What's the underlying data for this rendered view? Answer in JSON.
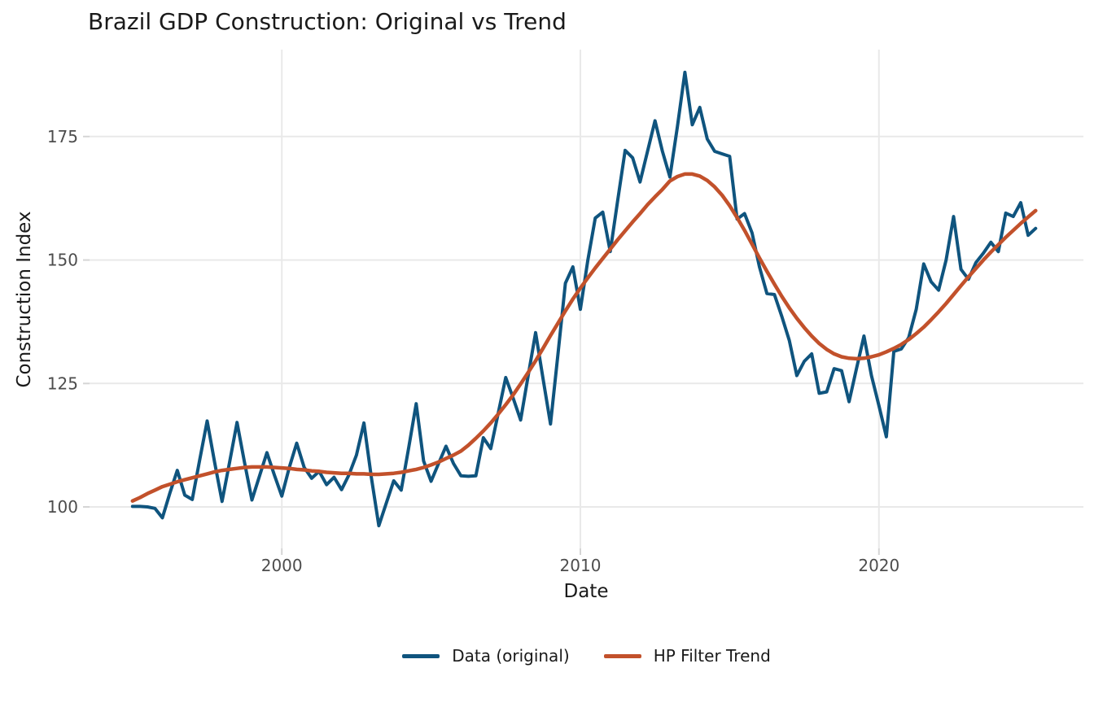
{
  "figure": {
    "title": "Brazil GDP Construction: Original vs Trend",
    "xlabel": "Date",
    "ylabel": "Construction Index",
    "background_color": "#ffffff",
    "grid_color": "#e9e9e9",
    "tick_mark_color": "#d5d5d5",
    "tick_label_color": "#4d4d4d",
    "text_color": "#1a1a1a"
  },
  "legend": {
    "items": [
      {
        "label": "Data (original)",
        "color": "#0f547e"
      },
      {
        "label": "HP Filter Trend",
        "color": "#c2512b"
      }
    ]
  },
  "chart_data": {
    "type": "line",
    "title": "Brazil GDP Construction: Original vs Trend",
    "xlabel": "Date",
    "ylabel": "Construction Index",
    "x_unit": "decimal year, quarterly",
    "xlim": [
      1993.56,
      2026.85
    ],
    "ylim": [
      91.6,
      192.6
    ],
    "x_ticks": [
      2000,
      2010,
      2020
    ],
    "y_ticks": [
      100,
      125,
      150,
      175
    ],
    "grid": true,
    "legend_position": "bottom-center",
    "x": [
      1995,
      1995.25,
      1995.5,
      1995.75,
      1996,
      1996.25,
      1996.5,
      1996.75,
      1997,
      1997.25,
      1997.5,
      1997.75,
      1998,
      1998.25,
      1998.5,
      1998.75,
      1999,
      1999.25,
      1999.5,
      1999.75,
      2000,
      2000.25,
      2000.5,
      2000.75,
      2001,
      2001.25,
      2001.5,
      2001.75,
      2002,
      2002.25,
      2002.5,
      2002.75,
      2003,
      2003.25,
      2003.5,
      2003.75,
      2004,
      2004.25,
      2004.5,
      2004.75,
      2005,
      2005.25,
      2005.5,
      2005.75,
      2006,
      2006.25,
      2006.5,
      2006.75,
      2007,
      2007.25,
      2007.5,
      2007.75,
      2008,
      2008.25,
      2008.5,
      2008.75,
      2009,
      2009.25,
      2009.5,
      2009.75,
      2010,
      2010.25,
      2010.5,
      2010.75,
      2011,
      2011.25,
      2011.5,
      2011.75,
      2012,
      2012.25,
      2012.5,
      2012.75,
      2013,
      2013.25,
      2013.5,
      2013.75,
      2014,
      2014.25,
      2014.5,
      2014.75,
      2015,
      2015.25,
      2015.5,
      2015.75,
      2016,
      2016.25,
      2016.5,
      2016.75,
      2017,
      2017.25,
      2017.5,
      2017.75,
      2018,
      2018.25,
      2018.5,
      2018.75,
      2019,
      2019.25,
      2019.5,
      2019.75,
      2020,
      2020.25,
      2020.5,
      2020.75,
      2021,
      2021.25,
      2021.5,
      2021.75,
      2022,
      2022.25,
      2022.5,
      2022.75,
      2023,
      2023.25,
      2023.5,
      2023.75,
      2024,
      2024.25,
      2024.5,
      2024.75,
      2025,
      2025.25
    ],
    "series": [
      {
        "name": "Data (original)",
        "color": "#0f547e",
        "width": 4,
        "values": [
          100.1,
          100.1,
          100.0,
          99.7,
          97.8,
          102.8,
          107.4,
          102.4,
          101.5,
          109.5,
          117.4,
          109.0,
          101.1,
          109.0,
          117.1,
          109.0,
          101.4,
          106.2,
          111.0,
          106.5,
          102.2,
          108.0,
          112.9,
          108.0,
          105.8,
          107.2,
          104.5,
          106.0,
          103.5,
          106.5,
          110.5,
          117.0,
          106.0,
          96.2,
          100.8,
          105.3,
          103.4,
          112.0,
          120.9,
          109.3,
          105.2,
          108.8,
          112.3,
          108.8,
          106.3,
          106.2,
          106.3,
          114.0,
          111.8,
          119.0,
          126.2,
          122.0,
          117.6,
          126.5,
          135.3,
          126.0,
          116.8,
          131.0,
          145.3,
          148.6,
          140.0,
          150.0,
          158.5,
          159.7,
          151.7,
          162.0,
          172.2,
          170.7,
          165.8,
          172.0,
          178.2,
          172.0,
          166.8,
          177.0,
          188.0,
          177.4,
          180.9,
          174.5,
          172.0,
          171.5,
          171.0,
          158.3,
          159.4,
          155.5,
          148.6,
          143.2,
          143.0,
          138.5,
          133.7,
          126.6,
          129.5,
          131.0,
          123.0,
          123.3,
          128.0,
          127.6,
          121.3,
          128.0,
          134.6,
          126.6,
          120.5,
          114.2,
          131.5,
          132.0,
          134.3,
          140.0,
          149.2,
          145.6,
          143.9,
          150.0,
          158.8,
          148.1,
          146.1,
          149.5,
          151.4,
          153.6,
          151.7,
          159.5,
          158.8,
          161.6,
          155.0,
          156.4
        ]
      },
      {
        "name": "HP Filter Trend",
        "color": "#c2512b",
        "width": 4.5,
        "values": [
          101.2,
          101.9,
          102.7,
          103.4,
          104.1,
          104.6,
          105.1,
          105.5,
          105.9,
          106.3,
          106.7,
          107.1,
          107.4,
          107.6,
          107.8,
          108.0,
          108.1,
          108.1,
          108.1,
          108.0,
          107.9,
          107.8,
          107.6,
          107.5,
          107.3,
          107.2,
          107.0,
          106.9,
          106.8,
          106.8,
          106.7,
          106.7,
          106.6,
          106.6,
          106.7,
          106.8,
          107.0,
          107.3,
          107.6,
          108.0,
          108.5,
          109.1,
          109.8,
          110.5,
          111.3,
          112.5,
          113.9,
          115.4,
          117.0,
          118.8,
          120.7,
          122.7,
          124.9,
          127.2,
          129.6,
          132.1,
          134.7,
          137.2,
          139.7,
          142.1,
          144.3,
          146.4,
          148.4,
          150.3,
          152.2,
          154.1,
          155.9,
          157.7,
          159.4,
          161.2,
          162.8,
          164.3,
          166.0,
          166.9,
          167.4,
          167.4,
          167.0,
          166.1,
          164.8,
          163.1,
          161.0,
          158.6,
          156.0,
          153.2,
          150.4,
          147.7,
          145.1,
          142.6,
          140.3,
          138.2,
          136.3,
          134.6,
          133.1,
          131.9,
          131.0,
          130.4,
          130.1,
          130.0,
          130.1,
          130.4,
          130.8,
          131.4,
          132.1,
          132.9,
          133.9,
          135.1,
          136.4,
          137.9,
          139.5,
          141.2,
          143.0,
          144.8,
          146.6,
          148.3,
          150.0,
          151.6,
          153.1,
          154.6,
          156.0,
          157.4,
          158.7,
          160.0
        ]
      }
    ]
  }
}
